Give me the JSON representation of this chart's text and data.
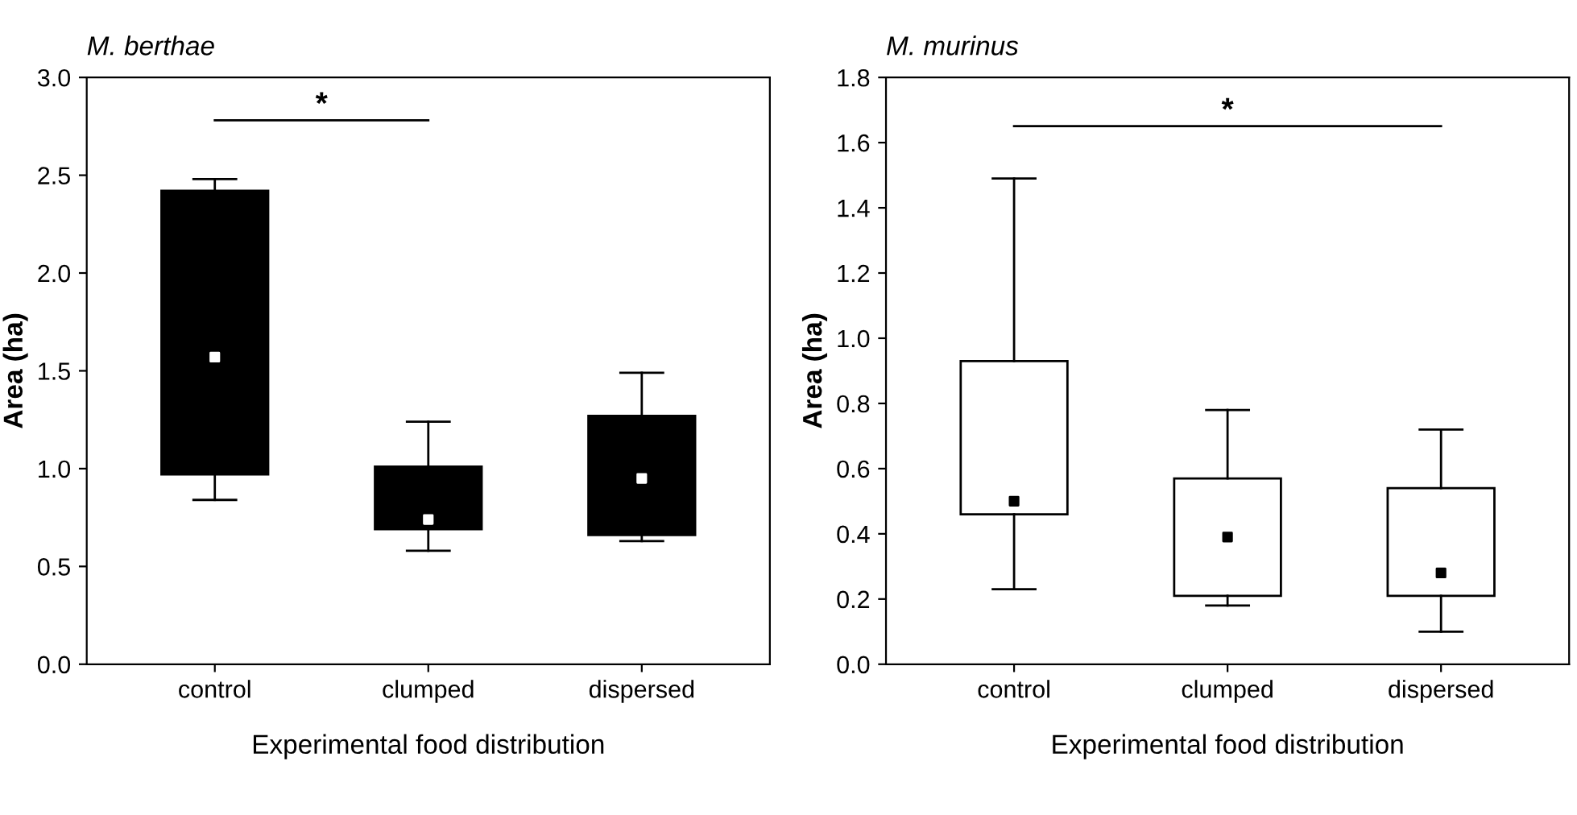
{
  "chart_data": [
    {
      "type": "box",
      "title": "M. berthae",
      "xlabel": "Experimental food distribution",
      "ylabel": "Area (ha)",
      "categories": [
        "control",
        "clumped",
        "dispersed"
      ],
      "ylim": [
        0,
        3
      ],
      "yticks": [
        {
          "value": 0,
          "label": "0.0"
        },
        {
          "value": 0.5,
          "label": "0.5"
        },
        {
          "value": 1,
          "label": "1.0"
        },
        {
          "value": 1.5,
          "label": "1.5"
        },
        {
          "value": 2,
          "label": "2.0"
        },
        {
          "value": 2.5,
          "label": "2.5"
        },
        {
          "value": 3,
          "label": "3.0"
        }
      ],
      "grid": false,
      "annotations": [
        "*"
      ],
      "series": [
        {
          "color": "#000000",
          "boxes": [
            {
              "low": 0.84,
              "q1": 0.97,
              "median": 1.57,
              "q3": 2.42,
              "high": 2.48
            },
            {
              "low": 0.58,
              "q1": 0.69,
              "median": 0.74,
              "q3": 1.01,
              "high": 1.24
            },
            {
              "low": 0.63,
              "q1": 0.66,
              "median": 0.95,
              "q3": 1.27,
              "high": 1.49
            }
          ]
        }
      ]
    },
    {
      "type": "box",
      "title": "M. murinus",
      "xlabel": "Experimental food distribution",
      "ylabel": "Area (ha)",
      "categories": [
        "control",
        "clumped",
        "dispersed"
      ],
      "ylim": [
        0,
        1.8
      ],
      "yticks": [
        {
          "value": 0,
          "label": "0.0"
        },
        {
          "value": 0.2,
          "label": "0.2"
        },
        {
          "value": 0.4,
          "label": "0.4"
        },
        {
          "value": 0.6,
          "label": "0.6"
        },
        {
          "value": 0.8,
          "label": "0.8"
        },
        {
          "value": 1.0,
          "label": "1.0"
        },
        {
          "value": 1.2,
          "label": "1.2"
        },
        {
          "value": 1.4,
          "label": "1.4"
        },
        {
          "value": 1.6,
          "label": "1.6"
        },
        {
          "value": 1.8,
          "label": "1.8"
        }
      ],
      "grid": false,
      "annotations": [
        "*"
      ],
      "series": [
        {
          "color": "#ffffff",
          "boxes": [
            {
              "low": 0.23,
              "q1": 0.46,
              "median": 0.5,
              "q3": 0.93,
              "high": 1.49
            },
            {
              "low": 0.18,
              "q1": 0.21,
              "median": 0.39,
              "q3": 0.57,
              "high": 0.78
            },
            {
              "low": 0.1,
              "q1": 0.21,
              "median": 0.28,
              "q3": 0.54,
              "high": 0.72
            }
          ]
        }
      ]
    }
  ]
}
